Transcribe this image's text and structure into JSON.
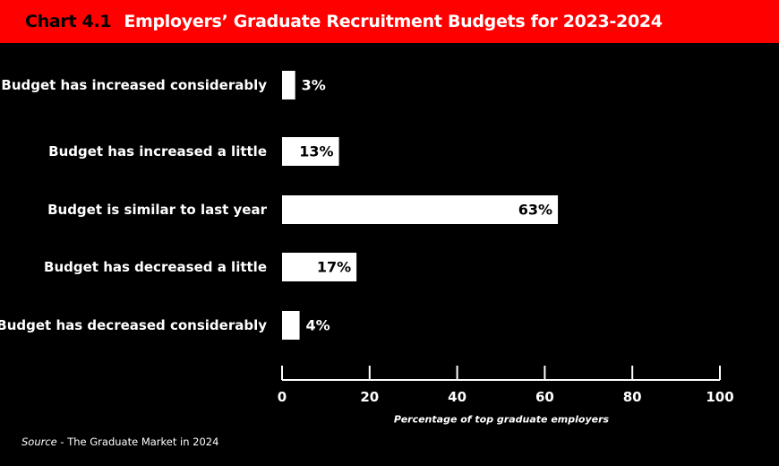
{
  "header": {
    "chart_number": "Chart 4.1",
    "title": "Employers’ Graduate Recruitment Budgets for 2023-2024"
  },
  "source": {
    "label": "Source",
    "text": " - The Graduate Market in 2024"
  },
  "colors": {
    "header_bg": "#ff0000",
    "background": "#000000",
    "bar": "#ffffff",
    "text": "#ffffff"
  },
  "chart_data": {
    "type": "bar",
    "orientation": "horizontal",
    "categories": [
      "Budget has increased considerably",
      "Budget has increased a little",
      "Budget is similar to last year",
      "Budget has decreased a little",
      "Budget has decreased considerably"
    ],
    "values": [
      3,
      13,
      63,
      17,
      4
    ],
    "value_labels": [
      "3%",
      "13%",
      "63%",
      "17%",
      "4%"
    ],
    "xlabel": "Percentage of top graduate employers",
    "ylabel": "",
    "xlim": [
      0,
      100
    ],
    "xticks": [
      0,
      20,
      40,
      60,
      80,
      100
    ],
    "grid": false,
    "legend": "none"
  }
}
